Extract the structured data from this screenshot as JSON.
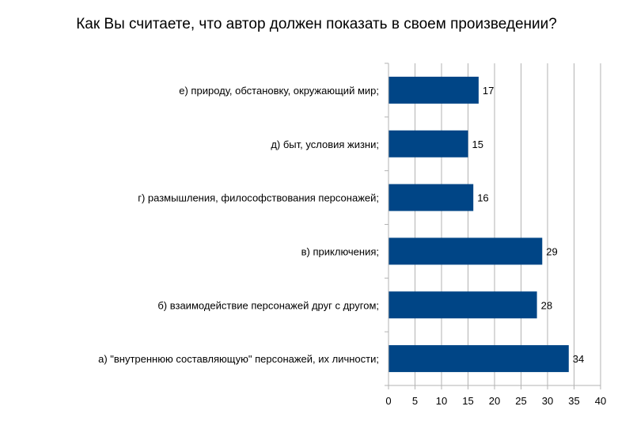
{
  "chart_data": {
    "type": "bar",
    "orientation": "horizontal",
    "title": "Как Вы считаете, что автор должен показать в своем произведении?",
    "categories": [
      "е) природу, обстановку, окружающий мир;",
      "д) быт, условия жизни;",
      "г) размышления, философствования персонажей;",
      "в) приключения;",
      "б) взаимодействие персонажей друг с другом;",
      "а) \"внутреннюю составляющую\" персонажей, их личности;"
    ],
    "values": [
      17,
      15,
      16,
      29,
      28,
      34
    ],
    "xlim": [
      0,
      40
    ],
    "xticks": [
      0,
      5,
      10,
      15,
      20,
      25,
      30,
      35,
      40
    ],
    "xlabel": "",
    "ylabel": "",
    "grid": "vertical",
    "bar_color": "#004586",
    "data_labels": true
  }
}
